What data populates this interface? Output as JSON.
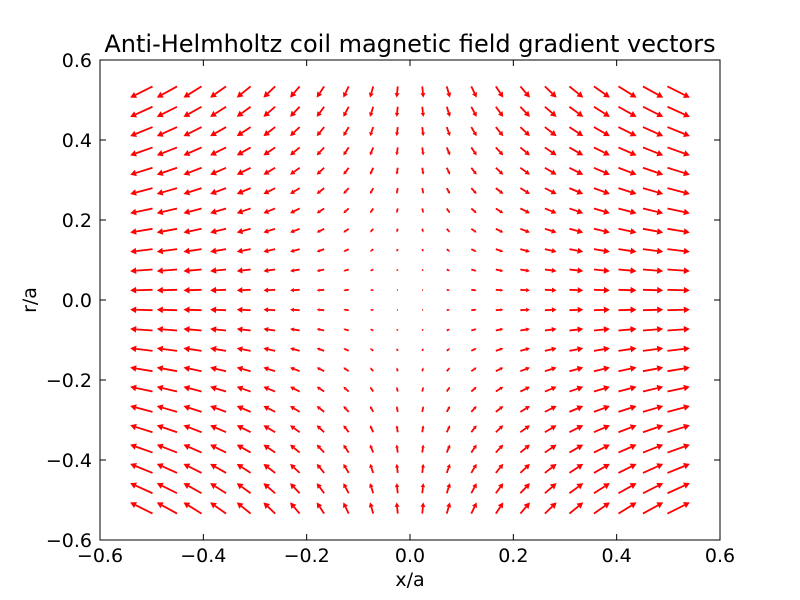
{
  "chart_data": {
    "type": "quiver",
    "title": "Anti-Helmholtz coil magnetic field gradient vectors",
    "xlabel": "x/a",
    "ylabel": "r/a",
    "xlim": [
      -0.6,
      0.6
    ],
    "ylim": [
      -0.6,
      0.6
    ],
    "xticks": [
      -0.6,
      -0.4,
      -0.2,
      0.0,
      0.2,
      0.4,
      0.6
    ],
    "yticks": [
      -0.6,
      -0.4,
      -0.2,
      0.0,
      0.2,
      0.4,
      0.6
    ],
    "xtick_labels": [
      "−0.6",
      "−0.4",
      "−0.2",
      "0.0",
      "0.2",
      "0.4",
      "0.6"
    ],
    "ytick_labels": [
      "−0.6",
      "−0.4",
      "−0.2",
      "0.0",
      "0.2",
      "0.4",
      "0.6"
    ],
    "grid": false,
    "arrow_color": "#ff0000",
    "vector_field": {
      "x_range": [
        -0.52,
        0.52
      ],
      "y_range": [
        -0.52,
        0.52
      ],
      "nx": 22,
      "ny": 22,
      "description": "vector (u,v) = (x, -y/2) direction; arrows point away from x=0 along x and toward r=0 along r"
    }
  }
}
